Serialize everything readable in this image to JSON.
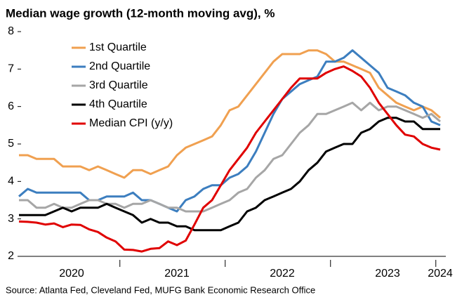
{
  "chart_data": {
    "type": "line",
    "title": "Median wage growth (12-month moving avg), %",
    "source": "Source: Atlanta Fed, Cleveland Fed, MUFG Bank Economic Research Office",
    "categories": [
      null,
      null,
      null,
      null,
      null,
      null,
      "2020",
      null,
      null,
      null,
      null,
      null,
      null,
      null,
      null,
      null,
      null,
      null,
      "2021",
      null,
      null,
      null,
      null,
      null,
      null,
      null,
      null,
      null,
      null,
      null,
      "2022",
      null,
      null,
      null,
      null,
      null,
      null,
      null,
      null,
      null,
      null,
      null,
      "2023",
      null,
      null,
      null,
      null,
      null,
      "2024"
    ],
    "ylim": [
      2,
      8
    ],
    "yticks": [
      2,
      3,
      4,
      5,
      6,
      7,
      8
    ],
    "legend": "upper left",
    "series": [
      {
        "name": "1st Quartile",
        "color": "#f0a050",
        "values": [
          4.7,
          4.7,
          4.6,
          4.6,
          4.6,
          4.4,
          4.4,
          4.4,
          4.3,
          4.4,
          4.3,
          4.2,
          4.1,
          4.3,
          4.3,
          4.2,
          4.3,
          4.4,
          4.7,
          4.9,
          5.0,
          5.1,
          5.2,
          5.5,
          5.9,
          6.0,
          6.3,
          6.6,
          6.9,
          7.2,
          7.4,
          7.4,
          7.4,
          7.5,
          7.5,
          7.4,
          7.2,
          7.2,
          7.1,
          7.0,
          6.9,
          6.5,
          6.3,
          6.1,
          6.0,
          5.9,
          6.0,
          5.9,
          5.7
        ]
      },
      {
        "name": "2nd Quartile",
        "color": "#3c7ebf",
        "values": [
          3.6,
          3.8,
          3.7,
          3.7,
          3.7,
          3.7,
          3.7,
          3.7,
          3.5,
          3.5,
          3.6,
          3.6,
          3.6,
          3.7,
          3.5,
          3.5,
          3.4,
          3.3,
          3.2,
          3.5,
          3.6,
          3.8,
          3.9,
          3.9,
          4.1,
          4.2,
          4.4,
          4.8,
          5.3,
          5.8,
          6.2,
          6.4,
          6.6,
          6.7,
          6.8,
          7.2,
          7.2,
          7.3,
          7.5,
          7.3,
          7.1,
          6.9,
          6.5,
          6.4,
          6.3,
          6.1,
          6.0,
          5.6,
          5.5
        ]
      },
      {
        "name": "3rd Quartile",
        "color": "#a6a6a6",
        "values": [
          3.5,
          3.5,
          3.3,
          3.3,
          3.4,
          3.3,
          3.3,
          3.4,
          3.5,
          3.5,
          3.4,
          3.4,
          3.3,
          3.4,
          3.4,
          3.5,
          3.4,
          3.3,
          3.3,
          3.2,
          3.2,
          3.2,
          3.3,
          3.4,
          3.5,
          3.7,
          3.8,
          4.1,
          4.3,
          4.6,
          4.7,
          5.0,
          5.3,
          5.5,
          5.8,
          5.8,
          5.9,
          6.0,
          6.1,
          5.9,
          6.1,
          5.9,
          6.0,
          6.0,
          5.9,
          5.8,
          5.7,
          5.8,
          5.6
        ]
      },
      {
        "name": "4th Quartile",
        "color": "#000000",
        "values": [
          3.1,
          3.1,
          3.1,
          3.1,
          3.2,
          3.3,
          3.2,
          3.3,
          3.3,
          3.3,
          3.4,
          3.3,
          3.2,
          3.1,
          2.9,
          3.0,
          2.9,
          2.9,
          2.8,
          2.8,
          2.7,
          2.7,
          2.7,
          2.7,
          2.8,
          2.9,
          3.2,
          3.3,
          3.5,
          3.6,
          3.7,
          3.8,
          4.0,
          4.3,
          4.5,
          4.8,
          4.9,
          5.0,
          5.0,
          5.3,
          5.4,
          5.6,
          5.7,
          5.7,
          5.6,
          5.6,
          5.4,
          5.4,
          5.4
        ]
      },
      {
        "name": "Median CPI (y/y)",
        "color": "#e00000",
        "values": [
          2.93,
          2.92,
          2.9,
          2.85,
          2.88,
          2.78,
          2.85,
          2.84,
          2.72,
          2.65,
          2.5,
          2.4,
          2.18,
          2.17,
          2.13,
          2.2,
          2.22,
          2.4,
          2.3,
          2.42,
          2.85,
          3.3,
          3.5,
          3.9,
          4.3,
          4.6,
          4.9,
          5.3,
          5.6,
          5.9,
          6.2,
          6.5,
          6.75,
          6.75,
          6.75,
          6.9,
          7.0,
          7.07,
          6.95,
          6.8,
          6.5,
          6.1,
          5.8,
          5.5,
          5.25,
          5.2,
          5.0,
          4.9,
          4.85
        ]
      }
    ]
  }
}
